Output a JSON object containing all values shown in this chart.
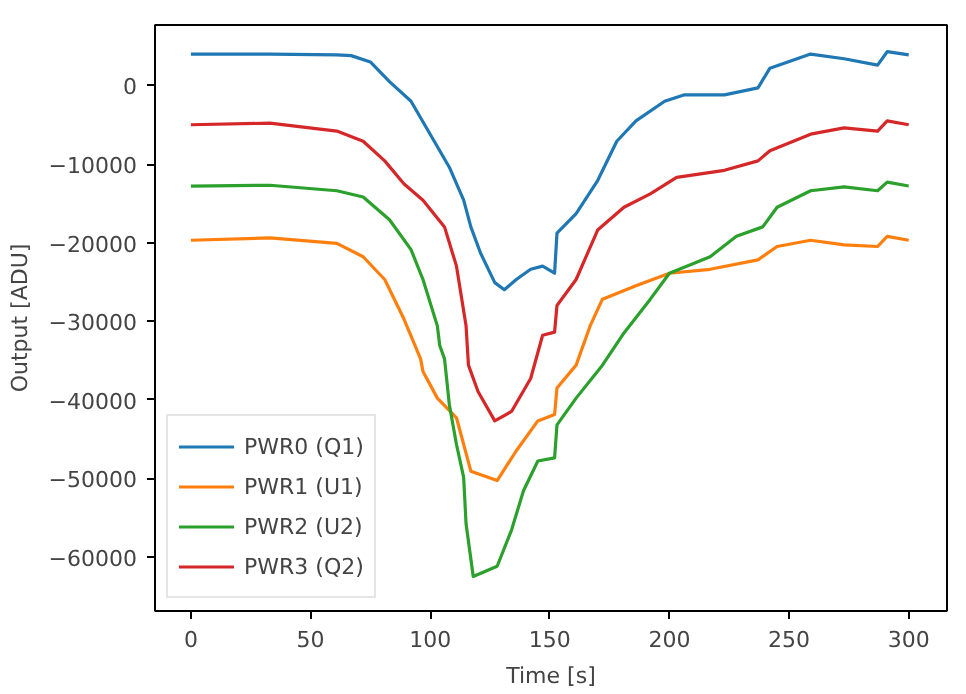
{
  "chart_data": {
    "type": "line",
    "xlabel": "Time [s]",
    "ylabel": "Output [ADU]",
    "xlim": [
      -15,
      316
    ],
    "ylim": [
      -66900,
      7700
    ],
    "xticks": [
      0,
      50,
      100,
      150,
      200,
      250,
      300
    ],
    "yticks": [
      -60000,
      -50000,
      -40000,
      -30000,
      -20000,
      -10000,
      0
    ],
    "grid": false,
    "legend": "bottom left",
    "line_style": "solid",
    "marker": "none",
    "series": [
      {
        "name": "PWR0 (Q1)",
        "color": "#1f77b4",
        "x": [
          0,
          33,
          61,
          67,
          75,
          83,
          92,
          100,
          108,
          114,
          117,
          121,
          127,
          131,
          136,
          142,
          147,
          152,
          153,
          161,
          170,
          178,
          186,
          198,
          206,
          223,
          237,
          242,
          259,
          273,
          287,
          291,
          300
        ],
        "values": [
          4000,
          4000,
          3900,
          3800,
          3000,
          500,
          -2000,
          -6200,
          -10400,
          -14600,
          -18000,
          -21300,
          -25100,
          -26000,
          -24700,
          -23400,
          -23000,
          -23900,
          -18800,
          -16300,
          -12100,
          -7100,
          -4500,
          -2000,
          -1200,
          -1200,
          -300,
          2200,
          4000,
          3400,
          2600,
          4300,
          3900
        ]
      },
      {
        "name": "PWR1 (U1)",
        "color": "#ff7f0e",
        "x": [
          0,
          33,
          61,
          72,
          81,
          89,
          96,
          97,
          103,
          111,
          117,
          128,
          136,
          145,
          152,
          153,
          161,
          167,
          172,
          186,
          200,
          217,
          237,
          245,
          259,
          273,
          287,
          291,
          300
        ],
        "values": [
          -19700,
          -19400,
          -20100,
          -21800,
          -24700,
          -29700,
          -34800,
          -36400,
          -39800,
          -42300,
          -49100,
          -50300,
          -46500,
          -42700,
          -41900,
          -38500,
          -35600,
          -30500,
          -27200,
          -25500,
          -23900,
          -23400,
          -22200,
          -20500,
          -19700,
          -20300,
          -20500,
          -19200,
          -19700
        ]
      },
      {
        "name": "PWR2 (U2)",
        "color": "#2ca02c",
        "x": [
          0,
          33,
          61,
          72,
          83,
          92,
          97,
          103,
          104,
          106,
          108,
          111,
          114,
          115,
          118,
          128,
          134,
          139,
          145,
          152,
          153,
          161,
          172,
          181,
          192,
          200,
          217,
          228,
          239,
          245,
          259,
          273,
          287,
          291,
          300
        ],
        "values": [
          -12800,
          -12700,
          -13400,
          -14200,
          -17100,
          -20900,
          -24700,
          -30600,
          -33100,
          -34800,
          -40600,
          -45700,
          -49900,
          -55800,
          -62500,
          -61200,
          -56600,
          -51600,
          -47800,
          -47400,
          -43200,
          -39800,
          -35600,
          -31500,
          -27200,
          -23900,
          -21800,
          -19200,
          -18000,
          -15500,
          -13400,
          -12900,
          -13400,
          -12300,
          -12800
        ]
      },
      {
        "name": "PWR3 (Q2)",
        "color": "#d62728",
        "x": [
          0,
          33,
          61,
          72,
          81,
          89,
          97,
          106,
          111,
          115,
          116,
          120,
          127,
          134,
          142,
          147,
          152,
          153,
          161,
          170,
          181,
          192,
          203,
          223,
          237,
          242,
          259,
          273,
          287,
          291,
          300
        ],
        "values": [
          -5000,
          -4800,
          -5800,
          -7100,
          -9600,
          -12500,
          -14600,
          -18000,
          -23000,
          -30600,
          -35600,
          -38950,
          -42700,
          -41500,
          -37300,
          -31800,
          -31400,
          -28000,
          -24700,
          -18400,
          -15500,
          -13800,
          -11700,
          -10800,
          -9600,
          -8300,
          -6200,
          -5400,
          -5800,
          -4500,
          -5000
        ]
      }
    ]
  }
}
